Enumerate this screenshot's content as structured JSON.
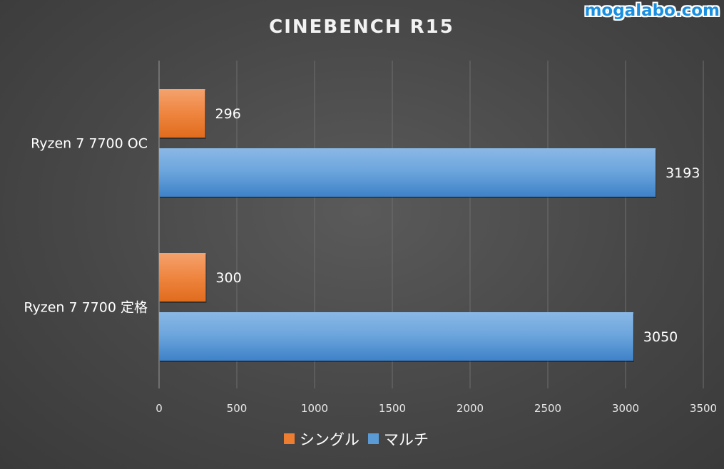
{
  "watermark": "mogalabo.com",
  "chart_data": {
    "type": "bar",
    "orientation": "horizontal",
    "title": "CINEBENCH R15",
    "categories": [
      "Ryzen 7 7700 OC",
      "Ryzen 7 7700 定格"
    ],
    "series": [
      {
        "name": "シングル",
        "values": [
          296,
          300
        ],
        "color": "#ed7d31"
      },
      {
        "name": "マルチ",
        "values": [
          3193,
          3050
        ],
        "color": "#5b9bd5"
      }
    ],
    "xlim": [
      0,
      3500
    ],
    "xticks": [
      0,
      500,
      1000,
      1500,
      2000,
      2500,
      3000,
      3500
    ],
    "grid": true,
    "legend": "bottom"
  }
}
